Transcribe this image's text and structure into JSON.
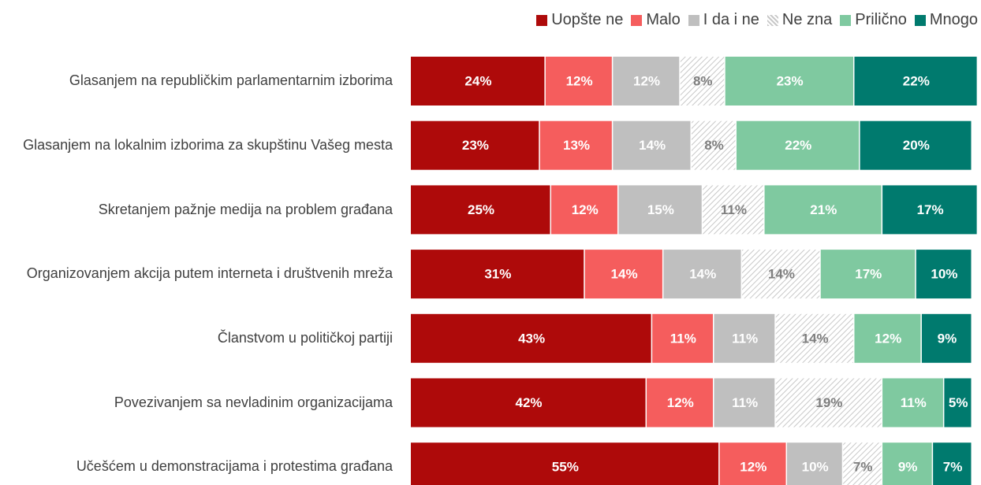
{
  "chart_data": {
    "type": "stacked-barh",
    "categories": [
      "Glasanjem na republičkim parlamentarnim izborima",
      "Glasanjem na lokalnim izborima za skupštinu Vašeg mesta",
      "Skretanjem pažnje medija na problem građana",
      "Organizovanjem akcija putem interneta i društvenih mreža",
      "Članstvom u političkoj partiji",
      "Povezivanjem sa nevladinim organizacijama",
      "Učešćem u demonstracijama i protestima građana"
    ],
    "series": [
      {
        "name": "Uopšte ne",
        "color": "#ae0a0a",
        "values": [
          24,
          23,
          25,
          31,
          43,
          42,
          55
        ],
        "value_labels": [
          "24%",
          "23%",
          "25%",
          "31%",
          "43%",
          "42%",
          "55%"
        ]
      },
      {
        "name": "Malo",
        "color": "#f55d5d",
        "values": [
          12,
          13,
          12,
          14,
          11,
          12,
          12
        ],
        "value_labels": [
          "12%",
          "13%",
          "12%",
          "14%",
          "11%",
          "12%",
          "12%"
        ]
      },
      {
        "name": "I da i ne",
        "color": "#bfbfbf",
        "values": [
          12,
          14,
          15,
          14,
          11,
          11,
          10
        ],
        "value_labels": [
          "12%",
          "14%",
          "15%",
          "14%",
          "11%",
          "11%",
          "10%"
        ]
      },
      {
        "name": "Ne zna",
        "color": "#d4d4d4",
        "hatch": true,
        "values": [
          8,
          8,
          11,
          14,
          14,
          19,
          7
        ],
        "value_labels": [
          "8%",
          "8%",
          "11%",
          "14%",
          "14%",
          "19%",
          "7%"
        ]
      },
      {
        "name": "Prilično",
        "color": "#7fc9a0",
        "values": [
          23,
          22,
          21,
          17,
          12,
          11,
          9
        ],
        "value_labels": [
          "23%",
          "22%",
          "21%",
          "17%",
          "12%",
          "11%",
          "9%"
        ]
      },
      {
        "name": "Mnogo",
        "color": "#007a6e",
        "values": [
          22,
          20,
          17,
          10,
          9,
          5,
          7
        ],
        "value_labels": [
          "22%",
          "20%",
          "17%",
          "10%",
          "9%",
          "5%",
          "7%"
        ]
      }
    ],
    "xlim": [
      0,
      100
    ],
    "legend": "top-right"
  }
}
